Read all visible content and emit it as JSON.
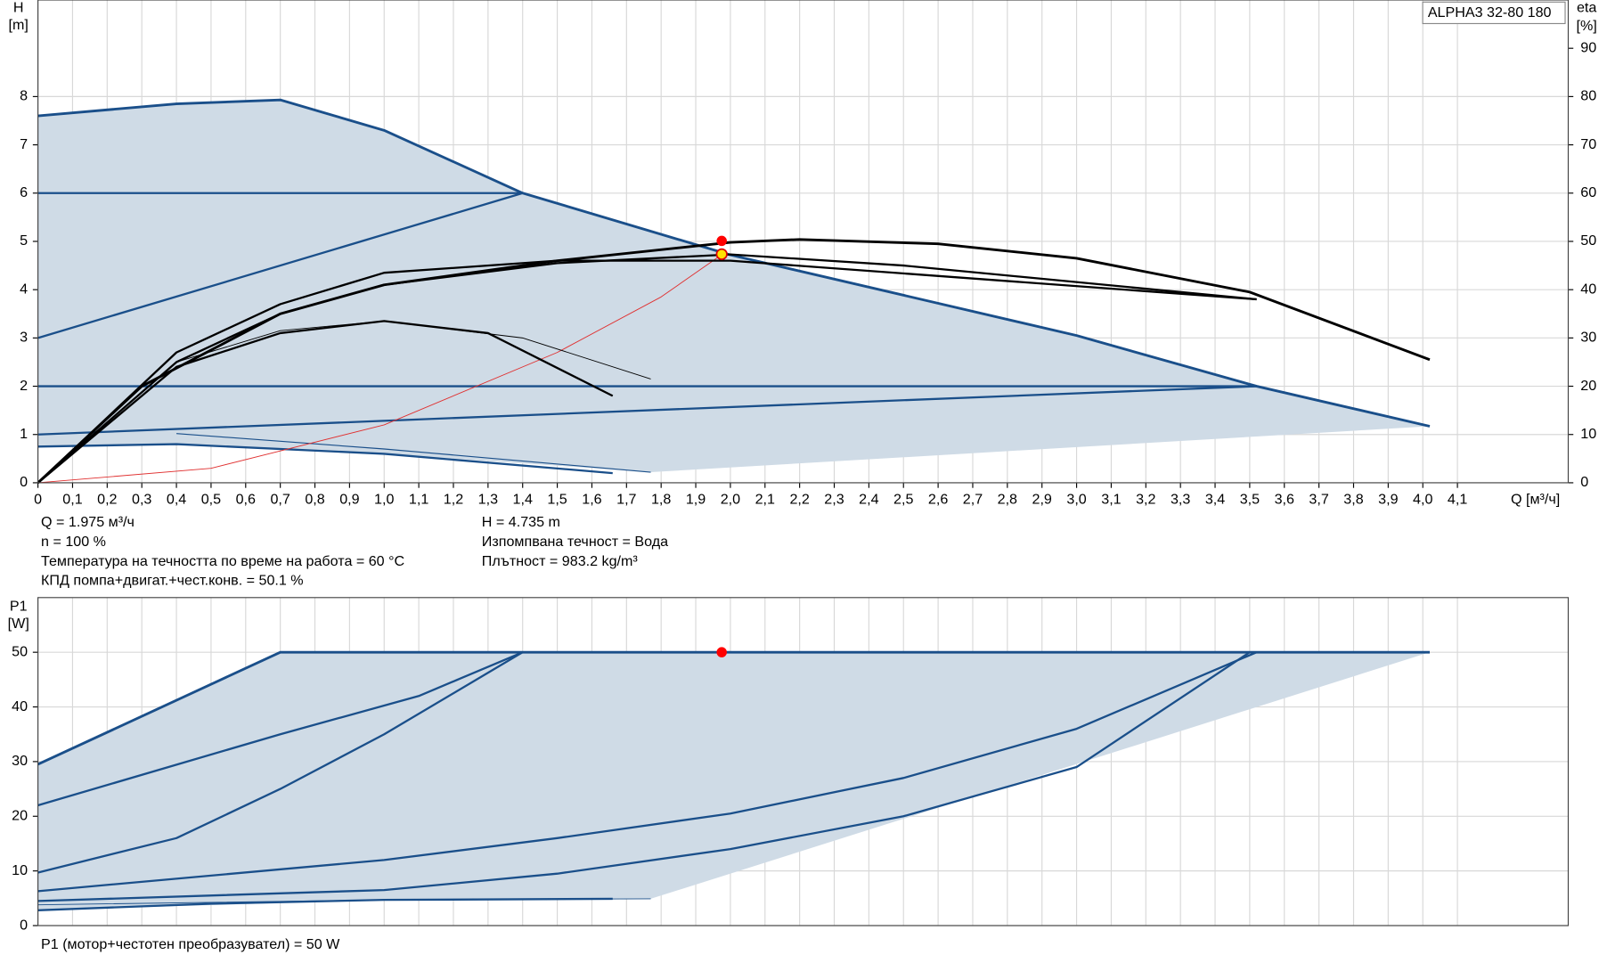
{
  "chart_data": [
    {
      "type": "line",
      "title": "ALPHA3 32-80 180",
      "ylabel": "H",
      "yunit": "[m]",
      "y2label": "eta",
      "y2unit": "[%]",
      "xlabel": "Q [м³/ч]",
      "xlim": [
        0,
        4.42
      ],
      "ylim": [
        0,
        10
      ],
      "y2lim": [
        0,
        100
      ],
      "grid": true,
      "xticks": [
        0,
        {
          "value": 0.1,
          "label": "0,1"
        },
        {
          "value": 0.2,
          "label": "0,2"
        },
        {
          "value": 0.3,
          "label": "0,3"
        },
        {
          "value": 0.4,
          "label": "0,4"
        },
        {
          "value": 0.5,
          "label": "0,5"
        },
        {
          "value": 0.6,
          "label": "0,6"
        },
        {
          "value": 0.7,
          "label": "0,7"
        },
        {
          "value": 0.8,
          "label": "0,8"
        },
        {
          "value": 0.9,
          "label": "0,9"
        },
        {
          "value": 1.0,
          "label": "1,0"
        },
        {
          "value": 1.1,
          "label": "1,1"
        },
        {
          "value": 1.2,
          "label": "1,2"
        },
        {
          "value": 1.3,
          "label": "1,3"
        },
        {
          "value": 1.4,
          "label": "1,4"
        },
        {
          "value": 1.5,
          "label": "1,5"
        },
        {
          "value": 1.6,
          "label": "1,6"
        },
        {
          "value": 1.7,
          "label": "1,7"
        },
        {
          "value": 1.8,
          "label": "1,8"
        },
        {
          "value": 1.9,
          "label": "1,9"
        },
        {
          "value": 2.0,
          "label": "2,0"
        },
        {
          "value": 2.1,
          "label": "2,1"
        },
        {
          "value": 2.2,
          "label": "2,2"
        },
        {
          "value": 2.3,
          "label": "2,3"
        },
        {
          "value": 2.4,
          "label": "2,4"
        },
        {
          "value": 2.5,
          "label": "2,5"
        },
        {
          "value": 2.6,
          "label": "2,6"
        },
        {
          "value": 2.7,
          "label": "2,7"
        },
        {
          "value": 2.8,
          "label": "2,8"
        },
        {
          "value": 2.9,
          "label": "2,9"
        },
        {
          "value": 3.0,
          "label": "3,0"
        },
        {
          "value": 3.1,
          "label": "3,1"
        },
        {
          "value": 3.2,
          "label": "3,2"
        },
        {
          "value": 3.3,
          "label": "3,3"
        },
        {
          "value": 3.4,
          "label": "3,4"
        },
        {
          "value": 3.5,
          "label": "3,5"
        },
        {
          "value": 3.6,
          "label": "3,6"
        },
        {
          "value": 3.7,
          "label": "3,7"
        },
        {
          "value": 3.8,
          "label": "3,8"
        },
        {
          "value": 3.9,
          "label": "3,9"
        },
        {
          "value": 4.0,
          "label": "4,0"
        },
        {
          "value": 4.1,
          "label": "4,1"
        }
      ],
      "yticks": [
        0,
        1,
        2,
        3,
        4,
        5,
        6,
        7,
        8
      ],
      "y2ticks": [
        0,
        10,
        20,
        30,
        40,
        50,
        60,
        70,
        80,
        90
      ],
      "area": {
        "color": "#cfdbe6",
        "x": [
          0,
          0.4,
          0.7,
          1.0,
          1.4,
          2.0,
          3.0,
          3.52,
          4.02,
          1.77,
          1.0,
          0.4,
          0
        ],
        "values": [
          7.6,
          7.85,
          7.93,
          7.3,
          6.0,
          4.72,
          3.05,
          2.0,
          1.17,
          0.22,
          0.6,
          0.8,
          0.75
        ]
      },
      "series": [
        {
          "color": "#1a4f8a",
          "width": 2.5,
          "x": [
            0,
            0.4,
            0.7,
            1.0,
            1.4,
            2.0,
            3.0,
            3.52,
            4.02
          ],
          "values": [
            7.6,
            7.85,
            7.93,
            7.3,
            6.0,
            4.72,
            3.05,
            2.0,
            1.17
          ]
        },
        {
          "color": "#1a4f8a",
          "width": 2,
          "x": [
            0,
            1.4
          ],
          "values": [
            6,
            6
          ]
        },
        {
          "color": "#1a4f8a",
          "width": 2,
          "x": [
            0,
            1.4
          ],
          "values": [
            3,
            6
          ]
        },
        {
          "color": "#1a4f8a",
          "width": 2,
          "x": [
            0,
            3.52
          ],
          "values": [
            2,
            2
          ]
        },
        {
          "color": "#1a4f8a",
          "width": 2,
          "x": [
            0,
            3.52
          ],
          "values": [
            1,
            2
          ]
        },
        {
          "color": "#1a4f8a",
          "width": 2,
          "x": [
            0,
            0.4,
            1.0,
            1.66
          ],
          "values": [
            0.75,
            0.8,
            0.6,
            0.2
          ]
        },
        {
          "color": "#1a4f8a",
          "width": 1,
          "x": [
            0.4,
            1.0,
            1.77
          ],
          "values": [
            1.02,
            0.7,
            0.22
          ]
        },
        {
          "color": "#e03030",
          "width": 0.8,
          "x": [
            0,
            0.5,
            1.0,
            1.5,
            1.8,
            1.98
          ],
          "values": [
            0,
            0.3,
            1.2,
            2.7,
            3.85,
            4.75
          ]
        },
        {
          "color": "#000000",
          "width": 2.5,
          "axis": "y2",
          "x": [
            0,
            0.3,
            0.7,
            1.0,
            1.5,
            2.0,
            2.2,
            2.6,
            3.0,
            3.5,
            4.02
          ],
          "values": [
            0,
            20,
            35,
            41,
            46,
            49.8,
            50.4,
            49.5,
            46.5,
            39.5,
            25.5
          ]
        },
        {
          "color": "#000000",
          "width": 2,
          "axis": "y2",
          "x": [
            0,
            0.4,
            0.7,
            1.0,
            1.5,
            2.0,
            2.5,
            3.52
          ],
          "values": [
            0,
            25,
            35,
            41,
            45.5,
            47.3,
            45,
            38
          ]
        },
        {
          "color": "#000000",
          "width": 2,
          "axis": "y2",
          "x": [
            0,
            0.4,
            0.7,
            1.0,
            1.5,
            2.0,
            3.52
          ],
          "values": [
            0,
            27,
            37,
            43.5,
            46,
            46,
            38
          ]
        },
        {
          "color": "#000000",
          "width": 2,
          "axis": "y2",
          "x": [
            0,
            0.4,
            0.7,
            1.0,
            1.3,
            1.66
          ],
          "values": [
            0,
            24,
            31,
            33.5,
            31,
            18
          ]
        },
        {
          "color": "#000000",
          "width": 0.8,
          "axis": "y2",
          "x": [
            0.4,
            0.7,
            1.0,
            1.4,
            1.77
          ],
          "values": [
            25,
            31.5,
            33.5,
            30,
            21.5
          ]
        }
      ],
      "points": [
        {
          "color": "#ff0000",
          "axis": "y2",
          "x": 1.975,
          "value": 50.1
        },
        {
          "color": "#ffe000",
          "x": 1.975,
          "value": 4.735
        }
      ],
      "info_left": [
        "Q = 1.975 м³/ч",
        "n = 100 %",
        "Температура на течността по време на работа = 60 °C",
        "КПД помпа+двигат.+чест.конв. = 50.1 %"
      ],
      "info_right": [
        "H = 4.735 m",
        "Изпомпвана течност = Вода",
        "Плътност = 983.2 kg/m³"
      ]
    },
    {
      "type": "line",
      "ylabel": "P1",
      "yunit": "[W]",
      "xlim": [
        0,
        4.42
      ],
      "ylim": [
        0,
        60
      ],
      "grid": true,
      "yticks": [
        0,
        10,
        20,
        30,
        40,
        50
      ],
      "area": {
        "color": "#cfdbe6",
        "x": [
          0,
          0.7,
          4.02,
          1.77,
          1.0,
          0
        ],
        "values": [
          29.5,
          50,
          50,
          4.9,
          4.7,
          2.8
        ]
      },
      "series": [
        {
          "color": "#1a4f8a",
          "width": 2.5,
          "x": [
            0,
            0.7,
            4.02
          ],
          "values": [
            29.5,
            50,
            50
          ]
        },
        {
          "color": "#1a4f8a",
          "width": 2,
          "x": [
            0,
            0.7,
            1.1,
            1.4
          ],
          "values": [
            22,
            35,
            42,
            50
          ]
        },
        {
          "color": "#1a4f8a",
          "width": 2,
          "x": [
            0,
            0.4,
            0.7,
            1.0,
            1.4
          ],
          "values": [
            9.7,
            16,
            25,
            35,
            50
          ]
        },
        {
          "color": "#1a4f8a",
          "width": 2,
          "x": [
            0,
            1.0,
            1.5,
            2.0,
            2.5,
            3.0,
            3.52
          ],
          "values": [
            6.3,
            12,
            16,
            20.5,
            27,
            36,
            50
          ]
        },
        {
          "color": "#1a4f8a",
          "width": 2,
          "x": [
            0,
            1.0,
            1.5,
            2.0,
            2.5,
            3.0,
            3.5
          ],
          "values": [
            4.5,
            6.5,
            9.5,
            14,
            20,
            29,
            50
          ]
        },
        {
          "color": "#1a4f8a",
          "width": 2,
          "x": [
            0,
            0.5,
            1.0,
            1.66
          ],
          "values": [
            2.8,
            4,
            4.7,
            4.9
          ]
        },
        {
          "color": "#1a4f8a",
          "width": 0.8,
          "x": [
            0,
            1.0,
            1.77
          ],
          "values": [
            3.8,
            4.7,
            4.9
          ]
        }
      ],
      "points": [
        {
          "color": "#ff0000",
          "x": 1.975,
          "value": 50
        }
      ],
      "footer": "P1 (мотор+честотен преобразувател) = 50 W"
    }
  ]
}
